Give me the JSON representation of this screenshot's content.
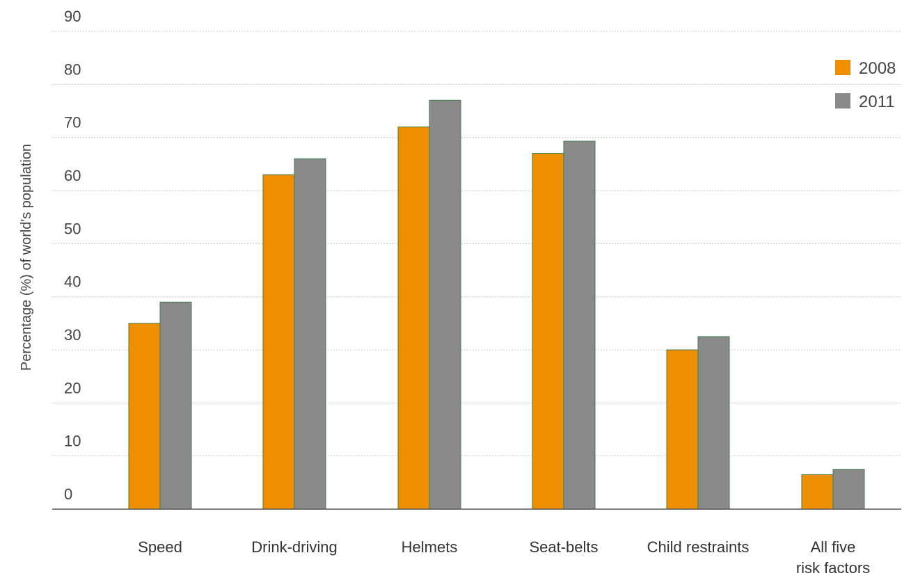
{
  "chart_data": {
    "type": "bar",
    "ylabel": "Percentage (%) of world's population",
    "xlabel": "",
    "title": "",
    "ylim": [
      0,
      90
    ],
    "yticks": [
      0,
      10,
      20,
      30,
      40,
      50,
      60,
      70,
      80,
      90
    ],
    "categories": [
      [
        "Speed"
      ],
      [
        "Drink-driving"
      ],
      [
        "Helmets"
      ],
      [
        "Seat-belts"
      ],
      [
        "Child restraints"
      ],
      [
        "All five",
        "risk factors"
      ]
    ],
    "series": [
      {
        "name": "2008",
        "color": "#ee8f00",
        "values": [
          35,
          63,
          72,
          67,
          30,
          6.5
        ]
      },
      {
        "name": "2011",
        "color": "#8a8a8a",
        "values": [
          39,
          66,
          77,
          69.3,
          32.5,
          7.5
        ]
      }
    ],
    "grid": true,
    "legend_position": "top-right"
  }
}
